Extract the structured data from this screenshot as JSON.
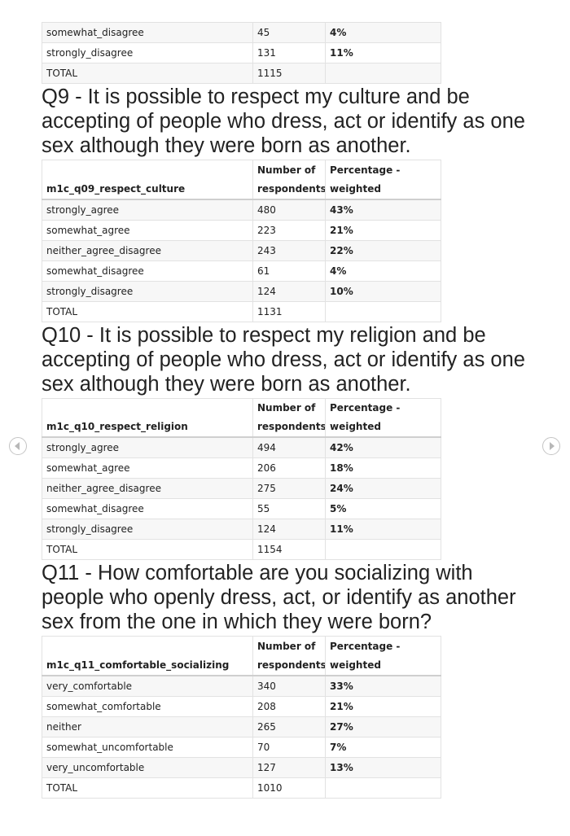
{
  "top_table": {
    "rows": [
      [
        "somewhat_disagree",
        "45",
        "4%"
      ],
      [
        "strongly_disagree",
        "131",
        "11%"
      ],
      [
        "TOTAL",
        "1115",
        ""
      ]
    ]
  },
  "sections": [
    {
      "heading": "Q9 - It is possible to respect my culture and be accepting of people who dress, act or identify as one sex although they were born as another.",
      "table": {
        "header": [
          [
            "m1c_q09_respect_culture"
          ],
          [
            "Number of",
            "respondents"
          ],
          [
            "Percentage -",
            "weighted"
          ]
        ],
        "rows": [
          [
            "strongly_agree",
            "480",
            "43%"
          ],
          [
            "somewhat_agree",
            "223",
            "21%"
          ],
          [
            "neither_agree_disagree",
            "243",
            "22%"
          ],
          [
            "somewhat_disagree",
            "61",
            "4%"
          ],
          [
            "strongly_disagree",
            "124",
            "10%"
          ],
          [
            "TOTAL",
            "1131",
            ""
          ]
        ]
      }
    },
    {
      "heading": "Q10 - It is possible to respect my religion and be accepting of people who dress, act or identify as one sex although they were born as another.",
      "table": {
        "header": [
          [
            "m1c_q10_respect_religion"
          ],
          [
            "Number of",
            "respondents"
          ],
          [
            "Percentage -",
            "weighted"
          ]
        ],
        "rows": [
          [
            "strongly_agree",
            "494",
            "42%"
          ],
          [
            "somewhat_agree",
            "206",
            "18%"
          ],
          [
            "neither_agree_disagree",
            "275",
            "24%"
          ],
          [
            "somewhat_disagree",
            "55",
            "5%"
          ],
          [
            "strongly_disagree",
            "124",
            "11%"
          ],
          [
            "TOTAL",
            "1154",
            ""
          ]
        ]
      }
    },
    {
      "heading": "Q11 - How comfortable are you socializing with people who openly dress, act, or identify as another sex from the one in which they were born?",
      "table": {
        "header": [
          [
            "m1c_q11_comfortable_socializing"
          ],
          [
            "Number of",
            "respondents"
          ],
          [
            "Percentage -",
            "weighted"
          ]
        ],
        "rows": [
          [
            "very_comfortable",
            "340",
            "33%"
          ],
          [
            "somewhat_comfortable",
            "208",
            "21%"
          ],
          [
            "neither",
            "265",
            "27%"
          ],
          [
            "somewhat_uncomfortable",
            "70",
            "7%"
          ],
          [
            "very_uncomfortable",
            "127",
            "13%"
          ],
          [
            "TOTAL",
            "1010",
            ""
          ]
        ]
      }
    }
  ]
}
